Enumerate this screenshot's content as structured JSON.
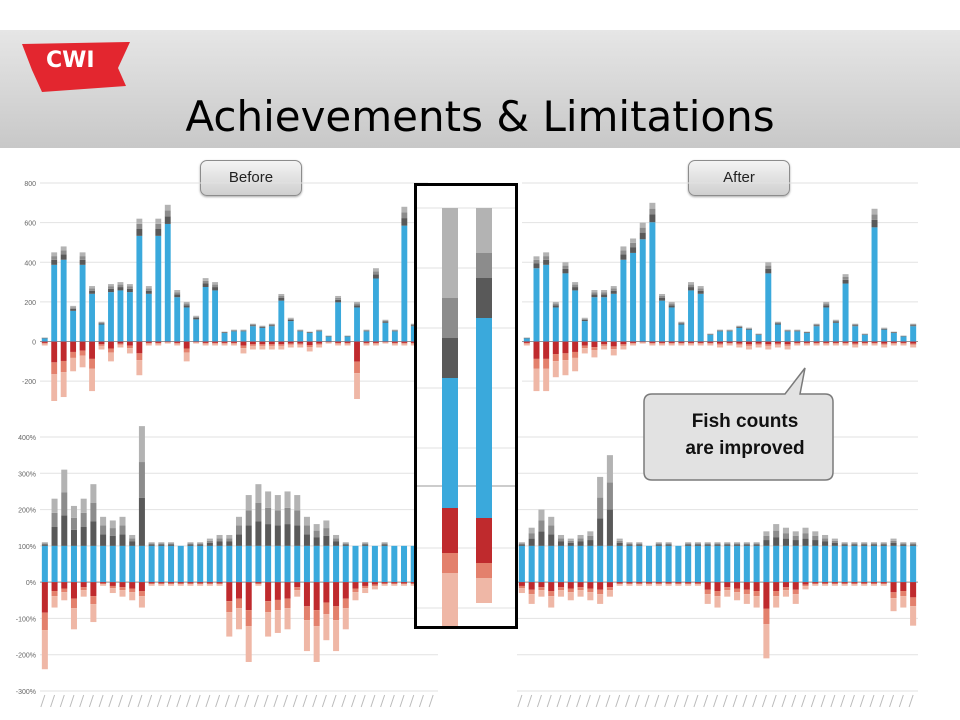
{
  "slide": {
    "logo_text": "CWI",
    "title": "Achievements & Limitations",
    "before_label": "Before",
    "after_label": "After",
    "callout_text_line1": "Fish counts",
    "callout_text_line2": "are improved"
  },
  "colors": {
    "logo_red": "#e3262f",
    "blue": "#3aa9dc",
    "dark_gray": "#595959",
    "mid_gray": "#8c8c8c",
    "light_gray": "#b3b3b3",
    "dark_red": "#bf2a2d",
    "mid_red": "#e3806c",
    "light_red": "#efb7a6"
  },
  "chart_data": [
    {
      "type": "bar",
      "panel": "before-absolute",
      "ylim": [
        -300,
        800
      ],
      "yticks": [
        -200,
        0,
        200,
        400,
        600,
        800
      ],
      "series_names": [
        "",
        "",
        "",
        "",
        "",
        "",
        ""
      ],
      "positive_values": [
        20,
        450,
        480,
        180,
        450,
        280,
        100,
        290,
        300,
        290,
        620,
        280,
        620,
        690,
        260,
        200,
        130,
        320,
        300,
        50,
        60,
        60,
        90,
        80,
        90,
        240,
        120,
        60,
        50,
        60,
        30,
        230,
        30,
        200,
        60,
        370,
        110,
        60,
        680,
        90,
        80
      ],
      "negative_values": [
        -20,
        -300,
        -280,
        -150,
        -130,
        -250,
        -40,
        -100,
        -30,
        -60,
        -170,
        -20,
        -20,
        -10,
        -20,
        -100,
        -10,
        -20,
        -20,
        -20,
        -20,
        -60,
        -40,
        -40,
        -40,
        -40,
        -30,
        -30,
        -50,
        -30,
        -10,
        -20,
        -20,
        -290,
        -20,
        -20,
        -10,
        -20,
        -20,
        -20,
        -20
      ]
    },
    {
      "type": "bar",
      "panel": "after-absolute",
      "ylim": [
        -300,
        800
      ],
      "yticks": [
        -200,
        0,
        200,
        400,
        600,
        800
      ],
      "series_names": [
        "",
        "",
        "",
        "",
        "",
        "",
        ""
      ],
      "positive_values": [
        20,
        430,
        450,
        200,
        400,
        300,
        120,
        260,
        260,
        280,
        480,
        520,
        600,
        700,
        240,
        200,
        100,
        300,
        280,
        40,
        60,
        60,
        80,
        70,
        40,
        400,
        100,
        60,
        60,
        50,
        90,
        200,
        110,
        340,
        90,
        40,
        670,
        70,
        50,
        30,
        90
      ],
      "negative_values": [
        -20,
        -250,
        -250,
        -180,
        -170,
        -150,
        -60,
        -80,
        -40,
        -70,
        -40,
        -20,
        -10,
        -20,
        -20,
        -20,
        -20,
        -20,
        -20,
        -20,
        -30,
        -20,
        -30,
        -40,
        -30,
        -40,
        -30,
        -40,
        -20,
        -20,
        -20,
        -20,
        -20,
        -20,
        -30,
        -20,
        -20,
        -30,
        -20,
        -20,
        -30
      ]
    },
    {
      "type": "bar",
      "panel": "before-relative",
      "ylim": [
        -300,
        400
      ],
      "yticks": [
        "-300%",
        "-200%",
        "-100%",
        "0%",
        "100%",
        "200%",
        "300%",
        "400%"
      ],
      "positive_values": [
        110,
        230,
        310,
        210,
        230,
        270,
        180,
        170,
        180,
        130,
        430,
        110,
        110,
        110,
        100,
        110,
        110,
        120,
        130,
        130,
        180,
        240,
        270,
        250,
        240,
        250,
        240,
        180,
        160,
        170,
        130,
        110,
        100,
        110,
        100,
        110,
        100,
        100,
        100,
        120,
        110
      ],
      "negative_values": [
        -240,
        -70,
        -50,
        -130,
        -40,
        -110,
        -10,
        -30,
        -40,
        -50,
        -70,
        -10,
        -10,
        -10,
        -10,
        -10,
        -10,
        -10,
        -10,
        -150,
        -130,
        -220,
        -10,
        -150,
        -140,
        -130,
        -40,
        -190,
        -220,
        -160,
        -190,
        -130,
        -50,
        -30,
        -20,
        -10,
        -10,
        -10,
        -10,
        -30,
        -10
      ]
    },
    {
      "type": "bar",
      "panel": "after-relative",
      "ylim": [
        -300,
        400
      ],
      "yticks": [
        "-300%",
        "-200%",
        "-100%",
        "0%",
        "100%",
        "200%",
        "300%",
        "400%"
      ],
      "positive_values": [
        110,
        150,
        200,
        180,
        130,
        120,
        130,
        140,
        290,
        350,
        120,
        110,
        110,
        100,
        110,
        110,
        100,
        110,
        110,
        110,
        110,
        110,
        110,
        110,
        110,
        140,
        160,
        150,
        140,
        150,
        140,
        130,
        120,
        110,
        110,
        110,
        110,
        110,
        120,
        110,
        110
      ],
      "negative_values": [
        -30,
        -60,
        -40,
        -70,
        -40,
        -50,
        -40,
        -50,
        -60,
        -40,
        -10,
        -10,
        -10,
        -10,
        -10,
        -10,
        -10,
        -10,
        -10,
        -60,
        -70,
        -40,
        -50,
        -60,
        -70,
        -210,
        -70,
        -40,
        -60,
        -20,
        -10,
        -10,
        -10,
        -10,
        -10,
        -10,
        -10,
        -10,
        -80,
        -70,
        -120
      ]
    },
    {
      "type": "bar",
      "panel": "zoom-stacked",
      "stack_order_top_to_bottom": [
        "light_gray",
        "mid_gray",
        "dark_gray",
        "blue",
        "dark_red",
        "mid_red",
        "light_red"
      ],
      "bars": [
        {
          "segments": [
            90,
            40,
            40,
            130,
            45,
            20,
            70
          ]
        },
        {
          "segments": [
            45,
            25,
            40,
            200,
            45,
            15,
            25
          ]
        }
      ]
    }
  ]
}
